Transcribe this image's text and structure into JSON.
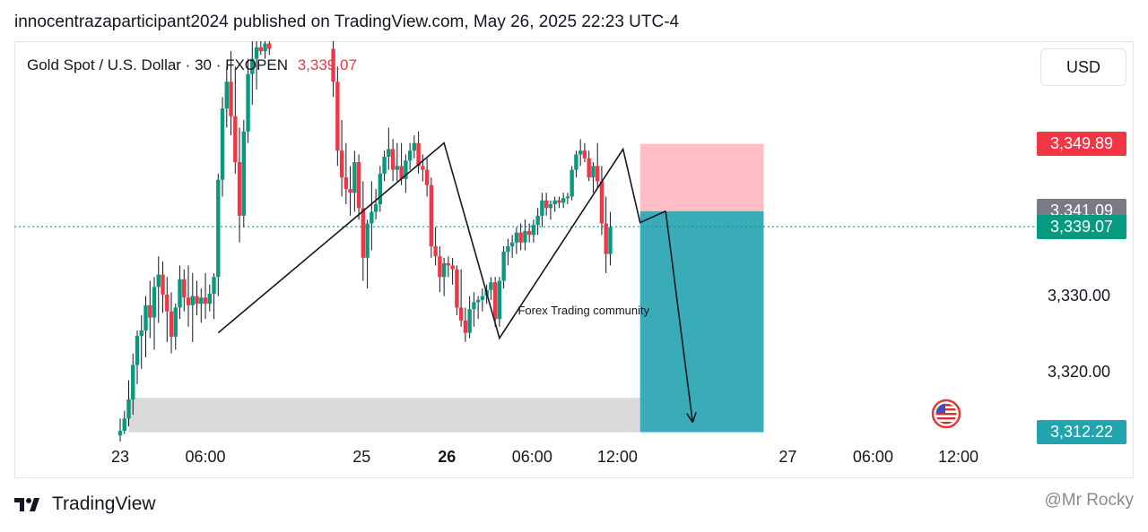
{
  "publisher_line": "innocentrazaparticipant2024 published on TradingView.com, May 26, 2025 22:23 UTC-4",
  "currency_button": "USD",
  "brand": {
    "name": "TradingView",
    "logo": "tradingview-logo-icon"
  },
  "watermark": "@Mr Rocky",
  "colors": {
    "up": "#089981",
    "down": "#f23645",
    "wick": "#131722",
    "target": "#3aacb8",
    "stop": "#ffbec6",
    "zone": "#d9d9d9"
  },
  "chart_data": {
    "type": "candlestick",
    "symbol_title": "Gold Spot / U.S. Dollar · 30 · FXOPEN",
    "last_price": "3,339.07",
    "xlim": [
      0,
      62
    ],
    "ylim": [
      3306.2,
      3363.3
    ],
    "x_ticks": [
      {
        "x": 0,
        "label": "23"
      },
      {
        "x": 6,
        "label": "06:00"
      },
      {
        "x": 17,
        "label": "25"
      },
      {
        "x": 23,
        "label": "26",
        "bold": true
      },
      {
        "x": 29,
        "label": "06:00"
      },
      {
        "x": 35,
        "label": "12:00"
      },
      {
        "x": 47,
        "label": "27"
      },
      {
        "x": 53,
        "label": "06:00"
      },
      {
        "x": 59,
        "label": "12:00"
      }
    ],
    "y_ticks": [
      {
        "value": 3330.0,
        "label": "3,330.00"
      },
      {
        "value": 3320.0,
        "label": "3,320.00"
      }
    ],
    "price_labels": [
      {
        "value": 3349.89,
        "label": "3,349.89",
        "color": "#f23645"
      },
      {
        "value": 3341.09,
        "label": "3,341.09",
        "color": "#787b86"
      },
      {
        "value": 3339.07,
        "label": "3,339.07",
        "color": "#089981"
      },
      {
        "value": 3312.22,
        "label": "3,312.22",
        "color": "#22a3ad"
      }
    ],
    "candles": [
      [
        0.0,
        3311.8,
        3314.0,
        3311.0,
        3312.4
      ],
      [
        0.3,
        3312.4,
        3315.0,
        3312.0,
        3314.0
      ],
      [
        0.6,
        3314.0,
        3319.0,
        3313.0,
        3316.5
      ],
      [
        0.9,
        3316.5,
        3322.5,
        3314.5,
        3321.0
      ],
      [
        1.2,
        3321.0,
        3325.5,
        3318.5,
        3324.8
      ],
      [
        1.5,
        3324.8,
        3327.5,
        3320.5,
        3325.5
      ],
      [
        1.8,
        3325.5,
        3330.0,
        3322.0,
        3328.8
      ],
      [
        2.1,
        3328.8,
        3332.0,
        3324.5,
        3327.2
      ],
      [
        2.4,
        3327.2,
        3332.5,
        3323.0,
        3331.2
      ],
      [
        2.7,
        3331.2,
        3335.2,
        3326.5,
        3332.8
      ],
      [
        3.0,
        3332.8,
        3334.5,
        3327.8,
        3330.2
      ],
      [
        3.3,
        3330.2,
        3332.5,
        3324.0,
        3328.0
      ],
      [
        3.6,
        3328.0,
        3330.5,
        3322.5,
        3324.7
      ],
      [
        3.9,
        3324.7,
        3329.0,
        3323.0,
        3328.5
      ],
      [
        4.2,
        3328.5,
        3334.0,
        3327.0,
        3332.2
      ],
      [
        4.5,
        3332.2,
        3333.5,
        3328.0,
        3329.8
      ],
      [
        4.8,
        3329.8,
        3334.0,
        3326.0,
        3328.8
      ],
      [
        5.1,
        3328.8,
        3333.0,
        3324.0,
        3330.0
      ],
      [
        5.4,
        3330.0,
        3332.0,
        3327.5,
        3329.0
      ],
      [
        5.7,
        3329.0,
        3331.0,
        3326.5,
        3329.8
      ],
      [
        6.0,
        3329.8,
        3333.0,
        3327.0,
        3329.0
      ],
      [
        6.3,
        3329.0,
        3331.5,
        3328.0,
        3330.3
      ],
      [
        6.6,
        3330.3,
        3333.0,
        3327.0,
        3332.5
      ],
      [
        6.9,
        3332.5,
        3346.0,
        3330.0,
        3345.2
      ],
      [
        7.2,
        3345.2,
        3356.0,
        3343.0,
        3354.5
      ],
      [
        7.5,
        3354.5,
        3360.0,
        3352.0,
        3358.0
      ],
      [
        7.8,
        3358.0,
        3362.0,
        3351.0,
        3353.5
      ],
      [
        8.1,
        3353.5,
        3360.0,
        3346.0,
        3347.5
      ],
      [
        8.4,
        3347.5,
        3352.0,
        3337.0,
        3340.5
      ],
      [
        8.7,
        3340.5,
        3353.0,
        3339.0,
        3351.5
      ],
      [
        9.0,
        3351.5,
        3361.0,
        3350.0,
        3359.0
      ],
      [
        9.3,
        3359.0,
        3363.3,
        3355.0,
        3361.0
      ],
      [
        9.6,
        3361.0,
        3363.3,
        3357.0,
        3362.5
      ],
      [
        9.9,
        3362.5,
        3363.3,
        3361.5,
        3362.0
      ],
      [
        10.2,
        3362.0,
        3363.3,
        3361.0,
        3363.0
      ],
      [
        10.5,
        3363.0,
        3363.3,
        3361.5,
        3362.3
      ],
      [
        15.0,
        3362.3,
        3363.3,
        3356.0,
        3358.0
      ],
      [
        15.3,
        3358.0,
        3360.0,
        3347.0,
        3349.0
      ],
      [
        15.6,
        3349.0,
        3353.0,
        3343.0,
        3345.5
      ],
      [
        15.9,
        3345.5,
        3350.0,
        3342.0,
        3344.0
      ],
      [
        16.2,
        3344.0,
        3347.0,
        3340.5,
        3343.5
      ],
      [
        16.5,
        3343.5,
        3349.0,
        3341.0,
        3347.5
      ],
      [
        16.8,
        3347.5,
        3348.5,
        3340.0,
        3341.5
      ],
      [
        17.1,
        3341.5,
        3345.0,
        3332.0,
        3335.0
      ],
      [
        17.4,
        3335.0,
        3340.0,
        3331.0,
        3339.5
      ],
      [
        17.7,
        3339.5,
        3345.0,
        3336.0,
        3341.0
      ],
      [
        18.0,
        3341.0,
        3344.0,
        3340.0,
        3342.0
      ],
      [
        18.3,
        3342.0,
        3347.0,
        3341.0,
        3346.0
      ],
      [
        18.6,
        3346.0,
        3349.0,
        3345.0,
        3348.2
      ],
      [
        18.9,
        3348.2,
        3352.0,
        3346.5,
        3349.2
      ],
      [
        19.2,
        3349.2,
        3350.5,
        3345.0,
        3346.5
      ],
      [
        19.5,
        3346.5,
        3350.0,
        3345.0,
        3347.0
      ],
      [
        19.8,
        3347.0,
        3350.0,
        3344.5,
        3345.3
      ],
      [
        20.1,
        3345.3,
        3348.5,
        3343.5,
        3347.7
      ],
      [
        20.4,
        3347.7,
        3350.0,
        3346.5,
        3349.0
      ],
      [
        20.7,
        3349.0,
        3351.0,
        3348.0,
        3350.0
      ],
      [
        21.0,
        3350.0,
        3351.5,
        3346.0,
        3347.0
      ],
      [
        21.3,
        3347.0,
        3348.5,
        3345.0,
        3346.5
      ],
      [
        21.6,
        3346.5,
        3348.0,
        3343.0,
        3344.5
      ],
      [
        21.9,
        3344.5,
        3345.5,
        3335.0,
        3336.5
      ],
      [
        22.2,
        3336.5,
        3339.0,
        3334.0,
        3335.2
      ],
      [
        22.5,
        3335.2,
        3336.5,
        3330.5,
        3332.5
      ],
      [
        22.8,
        3332.5,
        3335.0,
        3330.0,
        3334.3
      ],
      [
        23.1,
        3334.3,
        3335.2,
        3332.5,
        3334.0
      ],
      [
        23.4,
        3334.0,
        3335.0,
        3331.5,
        3333.5
      ],
      [
        23.7,
        3333.5,
        3334.0,
        3327.5,
        3328.5
      ],
      [
        24.0,
        3328.5,
        3333.5,
        3326.0,
        3326.8
      ],
      [
        24.3,
        3326.8,
        3328.5,
        3324.0,
        3325.2
      ],
      [
        24.6,
        3325.2,
        3330.0,
        3324.5,
        3328.3
      ],
      [
        24.9,
        3328.3,
        3330.5,
        3326.0,
        3329.2
      ],
      [
        25.2,
        3329.2,
        3330.0,
        3327.0,
        3329.5
      ],
      [
        25.5,
        3329.5,
        3331.0,
        3328.0,
        3330.0
      ],
      [
        25.8,
        3330.0,
        3331.5,
        3329.0,
        3330.8
      ],
      [
        26.1,
        3330.8,
        3332.5,
        3329.5,
        3331.8
      ],
      [
        26.4,
        3331.8,
        3332.5,
        3326.0,
        3327.0
      ],
      [
        26.7,
        3327.0,
        3332.5,
        3326.0,
        3332.0
      ],
      [
        27.0,
        3332.0,
        3336.5,
        3331.0,
        3335.8
      ],
      [
        27.3,
        3335.8,
        3337.5,
        3334.0,
        3336.5
      ],
      [
        27.6,
        3336.5,
        3338.0,
        3335.0,
        3337.0
      ],
      [
        27.9,
        3337.0,
        3339.0,
        3335.5,
        3338.3
      ],
      [
        28.2,
        3338.3,
        3339.5,
        3336.0,
        3337.0
      ],
      [
        28.5,
        3337.0,
        3340.0,
        3336.0,
        3338.5
      ],
      [
        28.8,
        3338.5,
        3339.5,
        3337.0,
        3338.0
      ],
      [
        29.1,
        3338.0,
        3340.0,
        3337.0,
        3339.3
      ],
      [
        29.4,
        3339.3,
        3341.5,
        3338.0,
        3340.5
      ],
      [
        29.7,
        3340.5,
        3343.5,
        3339.0,
        3342.5
      ],
      [
        30.0,
        3342.5,
        3343.5,
        3340.5,
        3341.5
      ],
      [
        30.3,
        3341.5,
        3342.5,
        3340.0,
        3342.0
      ],
      [
        30.6,
        3342.0,
        3343.0,
        3341.0,
        3342.5
      ],
      [
        30.9,
        3342.5,
        3343.0,
        3341.5,
        3342.2
      ],
      [
        31.2,
        3342.2,
        3343.5,
        3341.5,
        3342.8
      ],
      [
        31.5,
        3342.8,
        3343.5,
        3342.0,
        3343.0
      ],
      [
        31.8,
        3343.0,
        3347.0,
        3342.5,
        3346.5
      ],
      [
        32.1,
        3346.5,
        3349.0,
        3345.5,
        3348.5
      ],
      [
        32.4,
        3348.5,
        3350.5,
        3347.0,
        3349.0
      ],
      [
        32.7,
        3349.0,
        3350.0,
        3347.5,
        3348.0
      ],
      [
        33.0,
        3348.0,
        3349.0,
        3345.0,
        3345.5
      ],
      [
        33.3,
        3345.5,
        3347.5,
        3343.5,
        3347.0
      ],
      [
        33.6,
        3347.0,
        3350.0,
        3344.0,
        3345.0
      ],
      [
        33.9,
        3345.0,
        3347.0,
        3338.0,
        3339.5
      ],
      [
        34.2,
        3339.5,
        3343.0,
        3333.0,
        3335.5
      ],
      [
        34.5,
        3335.5,
        3341.0,
        3334.0,
        3339.0
      ]
    ],
    "polyline": [
      [
        6.9,
        3325.2
      ],
      [
        22.8,
        3350.0
      ],
      [
        26.7,
        3324.5
      ],
      [
        35.4,
        3349.2
      ],
      [
        36.6,
        3339.6
      ],
      [
        38.4,
        3341.1
      ]
    ],
    "arrow": {
      "from": [
        38.4,
        3341.1
      ],
      "to": [
        40.3,
        3313.5
      ]
    },
    "zone": {
      "x0": 0.6,
      "x1": 36.6,
      "y0": 3312.2,
      "y1": 3316.7
    },
    "position": {
      "x0": 36.6,
      "x1": 45.3,
      "stop": 3349.89,
      "entry": 3341.09,
      "target": 3312.22
    },
    "annotation": {
      "text": "Forex Trading community",
      "x": 28.0,
      "y": 3327.6
    }
  }
}
